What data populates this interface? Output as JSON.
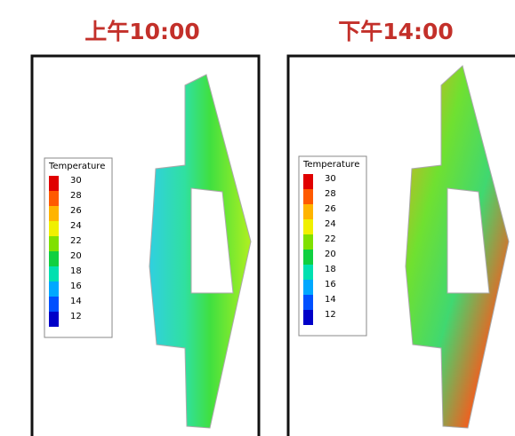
{
  "panels": [
    {
      "title": "上午10:00",
      "legend": {
        "title": "Temperature",
        "labels": [
          "30",
          "28",
          "26",
          "24",
          "22",
          "20",
          "18",
          "16",
          "14",
          "12"
        ]
      }
    },
    {
      "title": "下午14:00",
      "legend": {
        "title": "Temperature",
        "labels": [
          "30",
          "28",
          "26",
          "24",
          "22",
          "20",
          "18",
          "16",
          "14",
          "12"
        ]
      }
    }
  ]
}
